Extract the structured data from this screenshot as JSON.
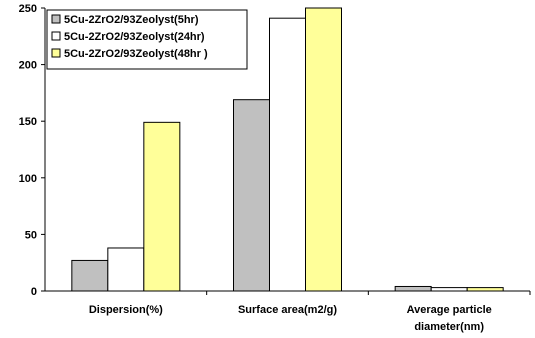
{
  "chart_data": {
    "type": "bar",
    "categories": [
      [
        "Dispersion(%)"
      ],
      [
        "Surface area(m2/g)"
      ],
      [
        "Average particle",
        "diameter(nm)"
      ]
    ],
    "series": [
      {
        "name": "5Cu-2ZrO2/93Zeolyst(5hr)",
        "values": [
          27,
          169,
          4
        ],
        "color": "#c0c0c0"
      },
      {
        "name": "5Cu-2ZrO2/93Zeolyst(24hr)",
        "values": [
          38,
          241,
          3
        ],
        "color": "#ffffff"
      },
      {
        "name": "5Cu-2ZrO2/93Zeolyst(48hr )",
        "values": [
          149,
          250,
          3
        ],
        "color": "#ffff99"
      }
    ],
    "yticks": [
      0,
      50,
      100,
      150,
      200,
      250
    ],
    "ylim": [
      0,
      250
    ],
    "title": "",
    "xlabel": "",
    "ylabel": "",
    "legend_position": "top-left",
    "grid": false
  }
}
